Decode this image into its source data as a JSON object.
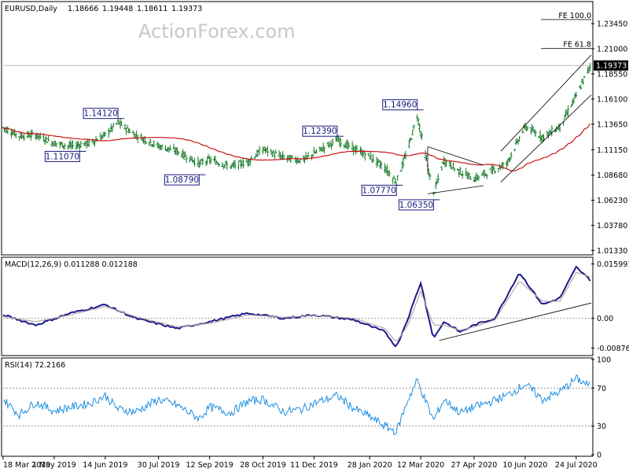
{
  "chart_data": [
    {
      "type": "bar",
      "subtype": "ohlc",
      "title": "EURUSD,Daily",
      "ohlc_readout": [
        "1.18666",
        "1.19448",
        "1.18611",
        "1.19373"
      ],
      "watermark": "ActionForex.com",
      "ylim": [
        1.0105,
        1.2545
      ],
      "y_ticks": [
        "1.23450",
        "1.21000",
        "1.18550",
        "1.16100",
        "1.13650",
        "1.11150",
        "1.08680",
        "1.06230",
        "1.03780",
        "1.01330"
      ],
      "y_tick_values": [
        1.2345,
        1.21,
        1.1855,
        1.161,
        1.1365,
        1.1115,
        1.0868,
        1.0623,
        1.0378,
        1.0133
      ],
      "x_ticks": [
        "18 Mar 2019",
        "1 May 2019",
        "14 Jun 2019",
        "30 Jul 2019",
        "12 Sep 2019",
        "28 Oct 2019",
        "11 Dec 2019",
        "28 Jan 2020",
        "12 Mar 2020",
        "27 Apr 2020",
        "10 Jun 2020",
        "24 Jul 2020"
      ],
      "last_price_label": "1.19373",
      "last_price": 1.19373,
      "annotations": [
        {
          "text": "1.14120",
          "x": "2019-06-25",
          "y": 1.1412
        },
        {
          "text": "1.11070",
          "x": "2019-05-23",
          "y": 1.1107
        },
        {
          "text": "1.08790",
          "x": "2019-09-03",
          "y": 1.0879
        },
        {
          "text": "1.12390",
          "x": "2019-12-31",
          "y": 1.1239
        },
        {
          "text": "1.07770",
          "x": "2020-02-20",
          "y": 1.0777
        },
        {
          "text": "1.14960",
          "x": "2020-03-09",
          "y": 1.1496
        },
        {
          "text": "1.06350",
          "x": "2020-03-23",
          "y": 1.0635
        }
      ],
      "fibonacci_labels": [
        {
          "text": "FE 100.0",
          "y": 1.2385
        },
        {
          "text": "FE 61.8",
          "y": 1.2105
        }
      ],
      "moving_average_color": "#cc1111",
      "bar_color": "#1a7a2a",
      "series": [
        {
          "name": "",
          "x": [
            "2019-03-18",
            "2019-04-01",
            "2019-04-15",
            "2019-05-01",
            "2019-05-15",
            "2019-06-01",
            "2019-06-14",
            "2019-06-25",
            "2019-07-10",
            "2019-07-30",
            "2019-08-15",
            "2019-09-03",
            "2019-09-12",
            "2019-09-30",
            "2019-10-15",
            "2019-10-28",
            "2019-11-15",
            "2019-12-01",
            "2019-12-11",
            "2019-12-31",
            "2020-01-15",
            "2020-01-28",
            "2020-02-10",
            "2020-02-20",
            "2020-03-01",
            "2020-03-09",
            "2020-03-23",
            "2020-04-01",
            "2020-04-15",
            "2020-04-27",
            "2020-05-10",
            "2020-05-25",
            "2020-06-10",
            "2020-06-25",
            "2020-07-10",
            "2020-07-24",
            "2020-08-05"
          ],
          "values": [
            1.133,
            1.125,
            1.126,
            1.118,
            1.115,
            1.118,
            1.126,
            1.138,
            1.126,
            1.115,
            1.11,
            1.098,
            1.102,
            1.095,
            1.1,
            1.112,
            1.104,
            1.101,
            1.108,
            1.121,
            1.112,
            1.105,
            1.094,
            1.08,
            1.112,
            1.145,
            1.068,
            1.101,
            1.09,
            1.083,
            1.09,
            1.098,
            1.134,
            1.124,
            1.134,
            1.164,
            1.193
          ]
        }
      ]
    },
    {
      "type": "line",
      "title": "MACD(12,26,9) 0.011288 0.012188",
      "ylim": [
        -0.0105,
        0.0175
      ],
      "y_ticks": [
        "0.015991",
        "0.00",
        "-0.00876"
      ],
      "y_tick_values": [
        0.015991,
        0.0,
        -0.00876
      ],
      "series": [
        {
          "name": "",
          "x": [
            "2019-03-18",
            "2019-04-15",
            "2019-05-15",
            "2019-06-14",
            "2019-07-10",
            "2019-08-15",
            "2019-09-12",
            "2019-10-15",
            "2019-11-15",
            "2019-12-11",
            "2020-01-15",
            "2020-02-10",
            "2020-02-20",
            "2020-03-01",
            "2020-03-12",
            "2020-03-23",
            "2020-04-01",
            "2020-04-15",
            "2020-04-27",
            "2020-05-15",
            "2020-06-05",
            "2020-06-25",
            "2020-07-10",
            "2020-07-24",
            "2020-08-05"
          ],
          "values": [
            0.001,
            -0.002,
            0.0015,
            0.004,
            0.0,
            -0.003,
            -0.001,
            0.0015,
            0.0,
            0.001,
            -0.0005,
            -0.004,
            -0.0085,
            0.0,
            0.0105,
            -0.006,
            -0.001,
            -0.004,
            -0.002,
            0.0,
            0.0135,
            0.004,
            0.006,
            0.015,
            0.011288
          ]
        },
        {
          "name": "",
          "x": [
            "2019-03-18",
            "2019-04-15",
            "2019-05-15",
            "2019-06-14",
            "2019-07-10",
            "2019-08-15",
            "2019-09-12",
            "2019-10-15",
            "2019-11-15",
            "2019-12-11",
            "2020-01-15",
            "2020-02-10",
            "2020-02-20",
            "2020-03-01",
            "2020-03-12",
            "2020-03-23",
            "2020-04-01",
            "2020-04-15",
            "2020-04-27",
            "2020-05-15",
            "2020-06-05",
            "2020-06-25",
            "2020-07-10",
            "2020-07-24",
            "2020-08-05"
          ],
          "values": [
            0.0005,
            -0.001,
            0.001,
            0.0035,
            0.0005,
            -0.0025,
            -0.0015,
            0.001,
            0.0003,
            0.0008,
            0.0,
            -0.003,
            -0.007,
            -0.002,
            0.008,
            -0.002,
            -0.002,
            -0.0035,
            -0.0025,
            -0.0005,
            0.011,
            0.005,
            0.005,
            0.0135,
            0.012188
          ]
        }
      ],
      "colors": {
        "macd": "#1a1a8c",
        "signal": "#b8a8a8"
      }
    },
    {
      "type": "line",
      "title": "RSI(14) 72.2166",
      "ylim": [
        0,
        100
      ],
      "y_ticks": [
        "100",
        "70",
        "30",
        "0"
      ],
      "y_tick_values": [
        100,
        70,
        30,
        0
      ],
      "series": [
        {
          "name": "",
          "x": [
            "2019-03-18",
            "2019-04-01",
            "2019-04-15",
            "2019-05-01",
            "2019-05-15",
            "2019-06-01",
            "2019-06-14",
            "2019-06-25",
            "2019-07-10",
            "2019-07-30",
            "2019-08-15",
            "2019-09-03",
            "2019-09-12",
            "2019-09-30",
            "2019-10-15",
            "2019-10-28",
            "2019-11-15",
            "2019-12-01",
            "2019-12-11",
            "2019-12-31",
            "2020-01-15",
            "2020-01-28",
            "2020-02-10",
            "2020-02-20",
            "2020-03-01",
            "2020-03-09",
            "2020-03-23",
            "2020-04-01",
            "2020-04-15",
            "2020-04-27",
            "2020-05-10",
            "2020-05-25",
            "2020-06-10",
            "2020-06-25",
            "2020-07-10",
            "2020-07-24",
            "2020-08-05"
          ],
          "values": [
            58,
            42,
            55,
            46,
            50,
            54,
            62,
            48,
            45,
            58,
            52,
            38,
            50,
            44,
            56,
            58,
            45,
            48,
            54,
            62,
            48,
            40,
            30,
            24,
            58,
            78,
            36,
            58,
            44,
            50,
            55,
            62,
            74,
            58,
            66,
            80,
            72.2166
          ]
        }
      ],
      "color": "#1f8fe0"
    }
  ]
}
